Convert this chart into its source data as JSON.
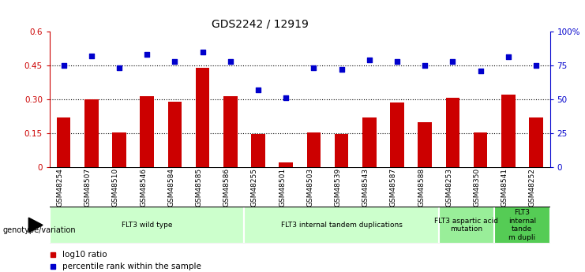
{
  "title": "GDS2242 / 12919",
  "samples": [
    "GSM48254",
    "GSM48507",
    "GSM48510",
    "GSM48546",
    "GSM48584",
    "GSM48585",
    "GSM48586",
    "GSM48255",
    "GSM48501",
    "GSM48503",
    "GSM48539",
    "GSM48543",
    "GSM48587",
    "GSM48588",
    "GSM48253",
    "GSM48350",
    "GSM48541",
    "GSM48252"
  ],
  "log10_ratio": [
    0.22,
    0.3,
    0.155,
    0.315,
    0.29,
    0.44,
    0.315,
    0.145,
    0.02,
    0.155,
    0.145,
    0.22,
    0.285,
    0.2,
    0.305,
    0.155,
    0.32,
    0.22
  ],
  "percentile_rank": [
    75,
    82,
    73,
    83,
    78,
    85,
    78,
    57,
    51,
    73,
    72,
    79,
    78,
    75,
    78,
    71,
    81,
    75
  ],
  "bar_color": "#cc0000",
  "dot_color": "#0000cc",
  "ylim_left": [
    0,
    0.6
  ],
  "ylim_right": [
    0,
    100
  ],
  "yticks_left": [
    0,
    0.15,
    0.3,
    0.45,
    0.6
  ],
  "ytick_labels_left": [
    "0",
    "0.15",
    "0.30",
    "0.45",
    "0.6"
  ],
  "yticks_right": [
    0,
    25,
    50,
    75,
    100
  ],
  "ytick_labels_right": [
    "0",
    "25",
    "50",
    "75",
    "100%"
  ],
  "hlines": [
    0.15,
    0.3,
    0.45
  ],
  "groups": [
    {
      "label": "FLT3 wild type",
      "start": 0,
      "end": 7,
      "color": "#ccffcc"
    },
    {
      "label": "FLT3 internal tandem duplications",
      "start": 7,
      "end": 14,
      "color": "#ccffcc"
    },
    {
      "label": "FLT3 aspartic acid\nmutation",
      "start": 14,
      "end": 16,
      "color": "#99ee99"
    },
    {
      "label": "FLT3\ninternal\ntande\nm dupli",
      "start": 16,
      "end": 18,
      "color": "#55cc55"
    }
  ],
  "genotype_label": "genotype/variation",
  "legend_items": [
    {
      "label": "log10 ratio",
      "color": "#cc0000"
    },
    {
      "label": "percentile rank within the sample",
      "color": "#0000cc"
    }
  ],
  "background_color": "#ffffff",
  "plot_bg_color": "#ffffff"
}
